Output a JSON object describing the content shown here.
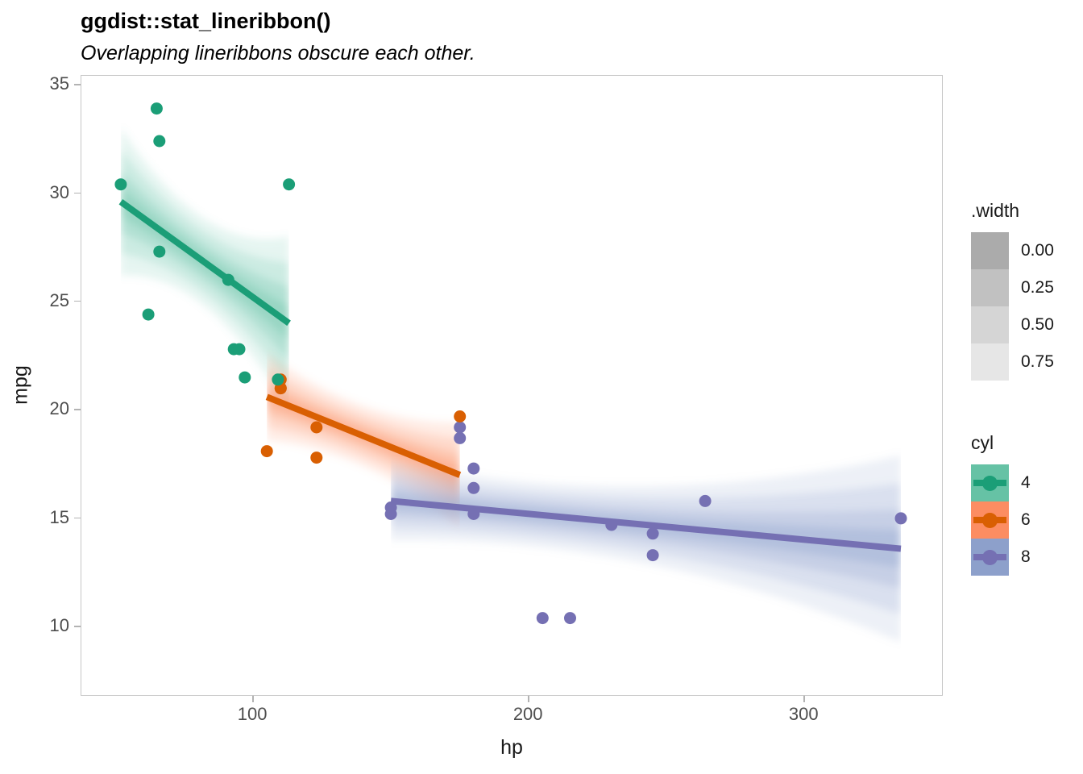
{
  "chart_data": {
    "type": "scatter",
    "title": "ggdist::stat_lineribbon()",
    "subtitle": "Overlapping lineribbons obscure each other.",
    "xlabel": "hp",
    "ylabel": "mpg",
    "x_domain": [
      37.7,
      350.5
    ],
    "y_domain": [
      6.78,
      35.41
    ],
    "x_ticks": [
      100,
      200,
      300
    ],
    "y_ticks": [
      35,
      30,
      25,
      20,
      15,
      10
    ],
    "grid": false,
    "series": [
      {
        "name": "cyl 4",
        "cyl": "4",
        "line_color": "#1b9e77",
        "fill_color": "#66c2a5",
        "line": {
          "x": [
            52,
            113
          ],
          "y": [
            29.6,
            24.0
          ]
        },
        "ribbon": {
          "x": [
            52,
            82,
            113
          ],
          "half_width": [
            3.4,
            2.0,
            4.0
          ]
        },
        "points": [
          [
            93,
            22.8
          ],
          [
            62,
            24.4
          ],
          [
            95,
            22.8
          ],
          [
            66,
            32.4
          ],
          [
            52,
            30.4
          ],
          [
            65,
            33.9
          ],
          [
            97,
            21.5
          ],
          [
            66,
            27.3
          ],
          [
            91,
            26.0
          ],
          [
            113,
            30.4
          ],
          [
            109,
            21.4
          ]
        ]
      },
      {
        "name": "cyl 6",
        "cyl": "6",
        "line_color": "#d95f02",
        "fill_color": "#fc8d62",
        "line": {
          "x": [
            105,
            175
          ],
          "y": [
            20.6,
            17.0
          ]
        },
        "ribbon": {
          "x": [
            105,
            122,
            175
          ],
          "half_width": [
            2.0,
            1.5,
            2.4
          ]
        },
        "points": [
          [
            110,
            21.0
          ],
          [
            110,
            21.0
          ],
          [
            110,
            21.4
          ],
          [
            105,
            18.1
          ],
          [
            123,
            19.2
          ],
          [
            123,
            17.8
          ],
          [
            175,
            19.7
          ]
        ]
      },
      {
        "name": "cyl 8",
        "cyl": "8",
        "line_color": "#7570b3",
        "fill_color": "#8da0cb",
        "line": {
          "x": [
            150,
            335
          ],
          "y": [
            15.8,
            13.6
          ]
        },
        "ribbon": {
          "x": [
            150,
            209,
            335
          ],
          "half_width": [
            1.8,
            1.5,
            4.3
          ]
        },
        "points": [
          [
            175,
            18.7
          ],
          [
            245,
            14.3
          ],
          [
            180,
            16.4
          ],
          [
            180,
            17.3
          ],
          [
            180,
            15.2
          ],
          [
            205,
            10.4
          ],
          [
            215,
            10.4
          ],
          [
            230,
            14.7
          ],
          [
            150,
            15.5
          ],
          [
            150,
            15.2
          ],
          [
            245,
            13.3
          ],
          [
            175,
            19.2
          ],
          [
            264,
            15.8
          ],
          [
            335,
            15.0
          ]
        ]
      }
    ],
    "legends": [
      {
        "title": ".width",
        "entries": [
          {
            "label": "0.00",
            "fill": "#ababab"
          },
          {
            "label": "0.25",
            "fill": "#c1c1c1"
          },
          {
            "label": "0.50",
            "fill": "#d5d5d5"
          },
          {
            "label": "0.75",
            "fill": "#e6e6e6"
          }
        ]
      },
      {
        "title": "cyl",
        "entries": [
          {
            "label": "4",
            "fill": "#66c2a5",
            "line_color": "#1b9e77"
          },
          {
            "label": "6",
            "fill": "#fc8d62",
            "line_color": "#d95f02"
          },
          {
            "label": "8",
            "fill": "#8da0cb",
            "line_color": "#7570b3"
          }
        ]
      }
    ]
  }
}
